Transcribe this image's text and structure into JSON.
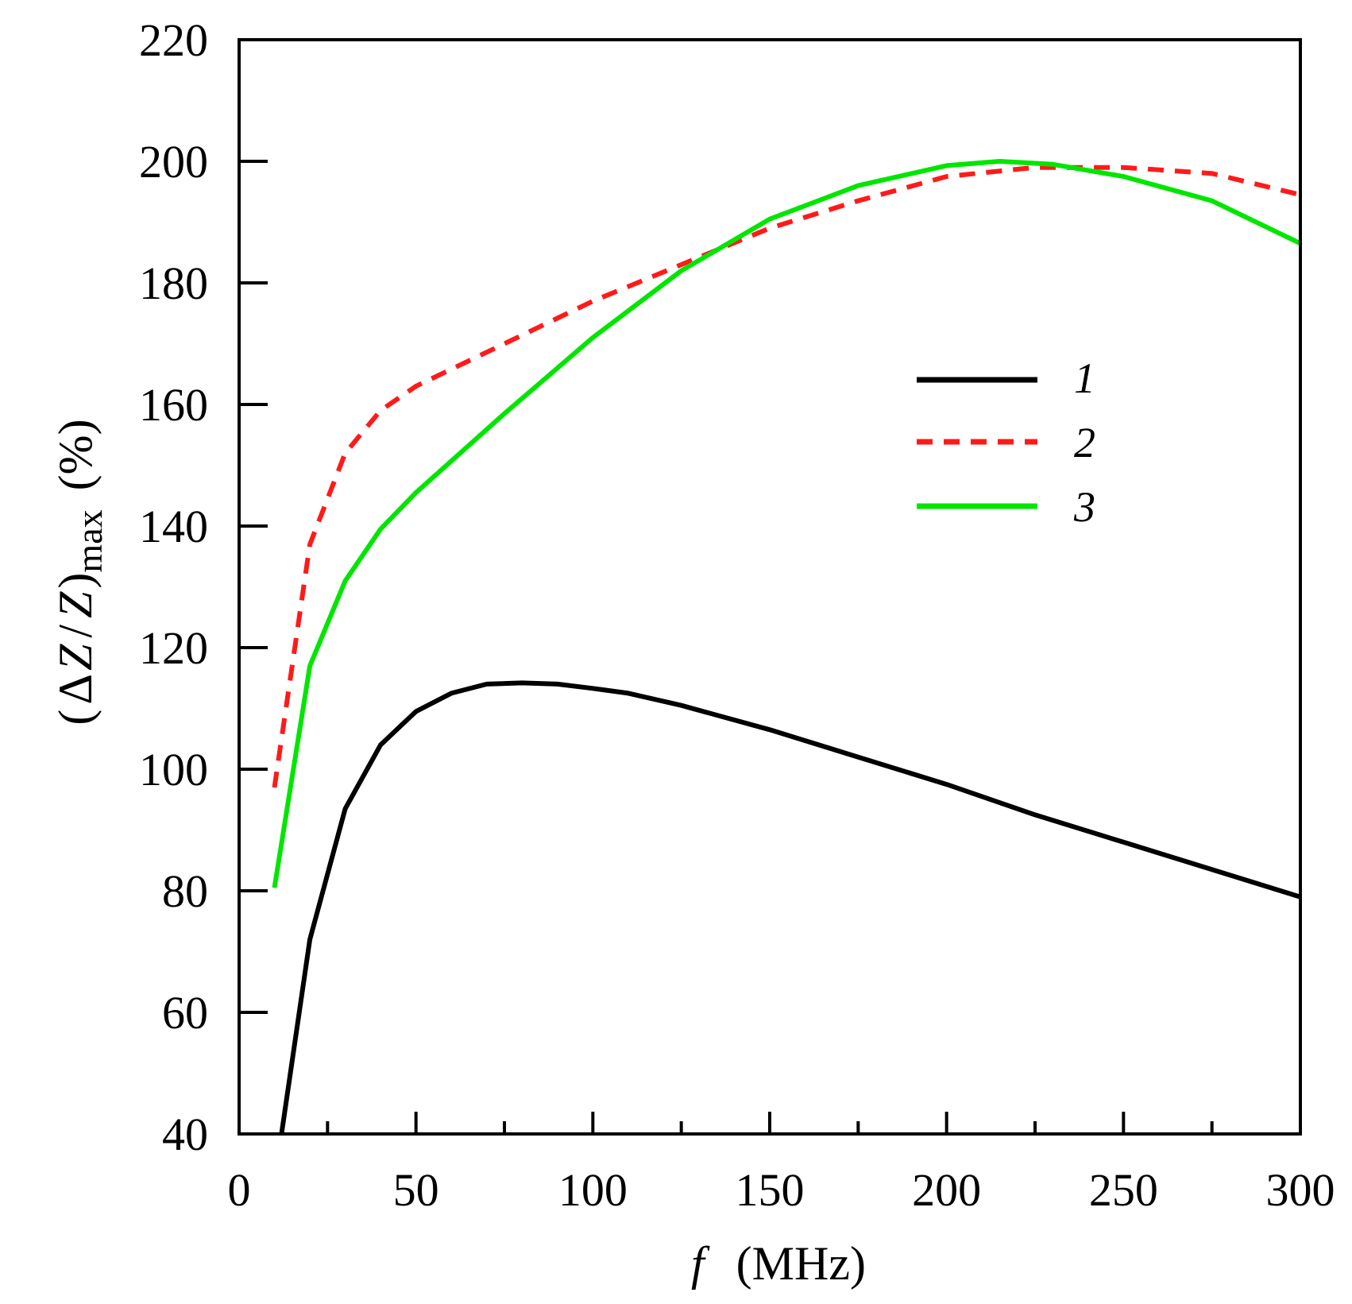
{
  "chart_data": {
    "type": "line",
    "title": "",
    "xlabel": {
      "var": "f",
      "unit": "(MHz)"
    },
    "ylabel": {
      "open": "(",
      "delta": "Δ",
      "z1": "Z",
      "slash": "/",
      "z2": "Z",
      "close": ")",
      "sub": "max",
      "unit": "(%)"
    },
    "xlim": [
      0,
      300
    ],
    "ylim": [
      40,
      220
    ],
    "xticks": [
      0,
      50,
      100,
      150,
      200,
      250,
      300
    ],
    "xtick_labels": [
      "0",
      "50",
      "100",
      "150",
      "200",
      "250",
      "300"
    ],
    "yticks": [
      40,
      60,
      80,
      100,
      120,
      140,
      160,
      180,
      200,
      220
    ],
    "ytick_labels": [
      "40",
      "60",
      "80",
      "100",
      "120",
      "140",
      "160",
      "180",
      "200",
      "220"
    ],
    "grid": false,
    "legend_position": "upper-right-inside",
    "series": [
      {
        "name": "1",
        "color": "#000000",
        "style": "solid",
        "x": [
          12,
          20,
          30,
          40,
          50,
          60,
          70,
          80,
          90,
          100,
          110,
          125,
          150,
          175,
          200,
          225,
          250,
          275,
          300
        ],
        "y": [
          40,
          72,
          93.5,
          104,
          109.5,
          112.5,
          114,
          114.2,
          114,
          113.3,
          112.5,
          110.5,
          106.5,
          102,
          97.5,
          92.5,
          88,
          83.5,
          79
        ]
      },
      {
        "name": "2",
        "color": "#ff1a1a",
        "style": "dashed",
        "x": [
          10,
          20,
          30,
          40,
          50,
          75,
          100,
          125,
          150,
          175,
          200,
          225,
          250,
          275,
          300
        ],
        "y": [
          97,
          137,
          152,
          159,
          163,
          170,
          177,
          183,
          189,
          193.5,
          197.5,
          199,
          199,
          198,
          194.5
        ]
      },
      {
        "name": "3",
        "color": "#00e600",
        "style": "solid",
        "x": [
          10,
          20,
          30,
          40,
          50,
          75,
          100,
          125,
          150,
          175,
          200,
          215,
          230,
          250,
          275,
          300
        ],
        "y": [
          80.5,
          117,
          131,
          139.5,
          145.5,
          158.5,
          171,
          182,
          190.5,
          196,
          199.3,
          200,
          199.5,
          197.5,
          193.5,
          186.5
        ]
      }
    ]
  }
}
